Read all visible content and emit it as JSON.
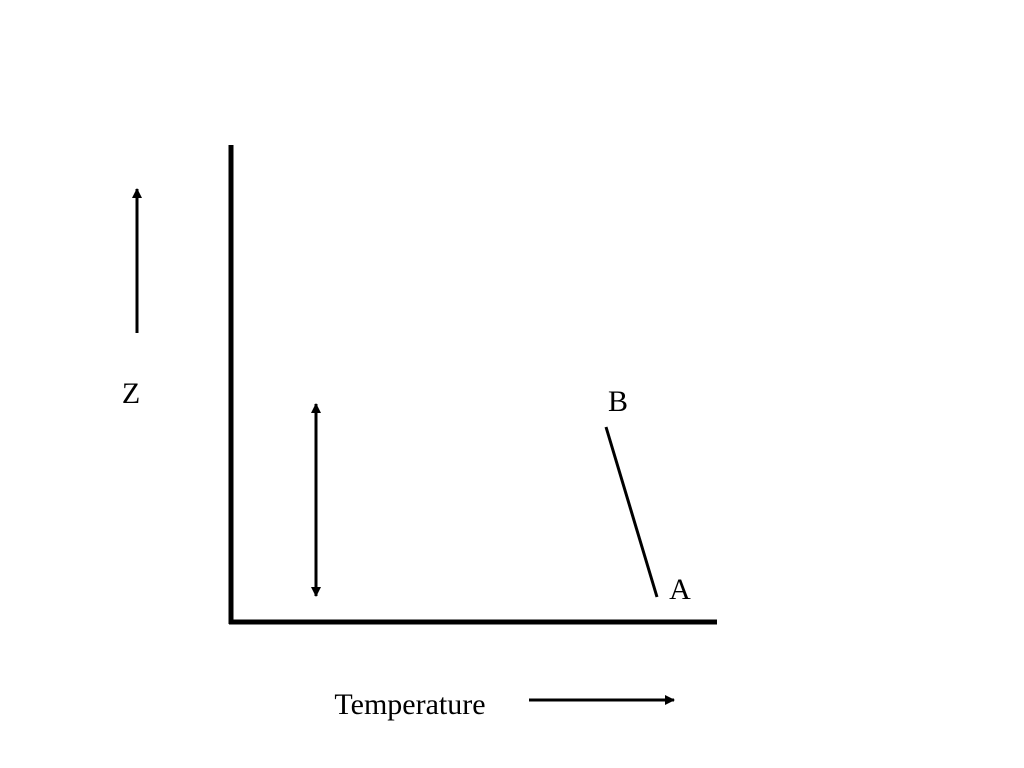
{
  "labels": {
    "z": "Z",
    "b": "B",
    "a": "A",
    "x_axis": "Temperature"
  }
}
